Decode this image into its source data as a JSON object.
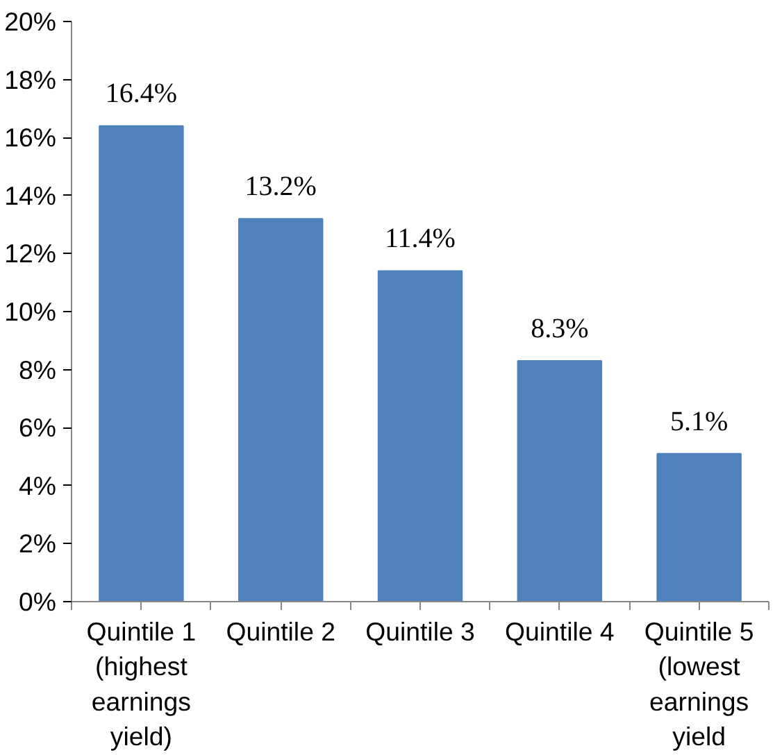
{
  "chart_data": {
    "type": "bar",
    "categories": [
      "Quintile 1\n(highest\nearnings\nyield)",
      "Quintile 2",
      "Quintile 3",
      "Quintile 4",
      "Quintile 5\n(lowest\nearnings\nyield"
    ],
    "values": [
      16.4,
      13.2,
      11.4,
      8.3,
      5.1
    ],
    "color": "#4f81bd",
    "value_labels": [
      "16.4%",
      "13.2%",
      "11.4%",
      "8.3%",
      "5.1%"
    ],
    "ylim": [
      0,
      20
    ],
    "yticks": [
      {
        "value": 0,
        "label": "0%"
      },
      {
        "value": 2,
        "label": "2%"
      },
      {
        "value": 4,
        "label": "4%"
      },
      {
        "value": 6,
        "label": "6%"
      },
      {
        "value": 8,
        "label": "8%"
      },
      {
        "value": 10,
        "label": "10%"
      },
      {
        "value": 12,
        "label": "12%"
      },
      {
        "value": 14,
        "label": "14%"
      },
      {
        "value": 16,
        "label": "16%"
      },
      {
        "value": 18,
        "label": "18%"
      },
      {
        "value": 20,
        "label": "20%"
      }
    ],
    "grid": false
  }
}
